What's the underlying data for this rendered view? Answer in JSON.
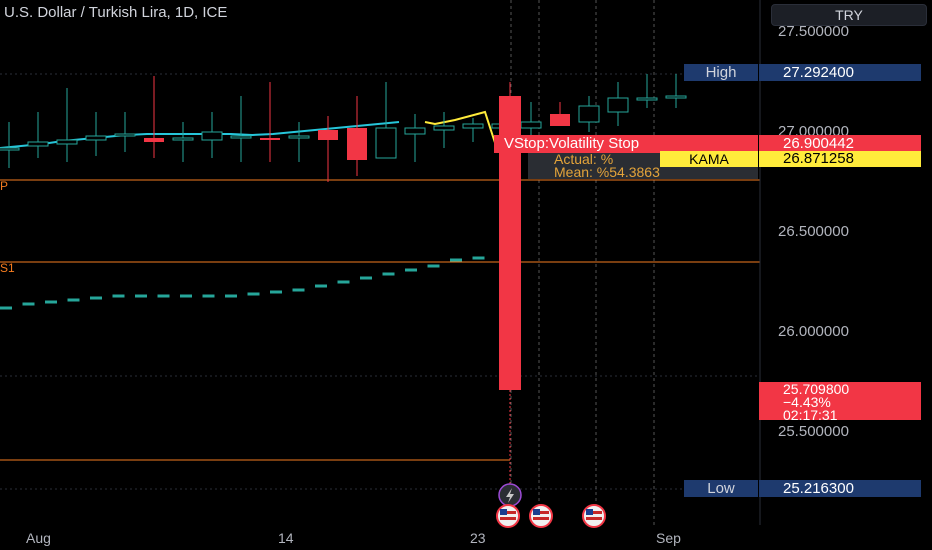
{
  "header": {
    "title": "U.S. Dollar / Turkish Lira, 1D, ICE",
    "currency_button": "TRY"
  },
  "y_axis": {
    "ticks": [
      "27.500000",
      "27.000000",
      "26.500000",
      "26.000000",
      "25.500000"
    ]
  },
  "x_axis": {
    "ticks": [
      "Aug",
      "14",
      "23",
      "Sep"
    ]
  },
  "tags": {
    "high_label": "High",
    "high_value": "27.292400",
    "stop_value": "26.900442",
    "kama_label": "KAMA",
    "kama_value": "26.871258",
    "price_value": "25.709800",
    "price_change": "−4.43%",
    "countdown": "02:17:31",
    "low_label": "Low",
    "low_value": "25.216300"
  },
  "indicator_labels": {
    "vstop": "VStop:Volatility Stop",
    "actual_line": "Actual: %",
    "mean_line": "Mean:   %54.3863",
    "pivot_p": "P",
    "pivot_s1": "S1"
  },
  "colors": {
    "up": "#26a69a",
    "down": "#f23645",
    "kama": "#ffeb3b",
    "pivot": "#f57c1f",
    "ma": "#2196f3"
  },
  "chart_data": {
    "type": "candlestick",
    "symbol": "USDTRY",
    "y_range": [
      25.03,
      27.54
    ],
    "x_labels": [
      "Aug",
      "14",
      "23",
      "Sep"
    ],
    "candles": [
      {
        "o": 26.92,
        "h": 27.05,
        "l": 26.82,
        "c": 26.92
      },
      {
        "o": 26.93,
        "h": 27.1,
        "l": 26.87,
        "c": 26.95
      },
      {
        "o": 26.94,
        "h": 27.22,
        "l": 26.85,
        "c": 26.96
      },
      {
        "o": 26.96,
        "h": 27.1,
        "l": 26.88,
        "c": 26.98
      },
      {
        "o": 26.98,
        "h": 27.1,
        "l": 26.9,
        "c": 26.99
      },
      {
        "o": 26.97,
        "h": 27.28,
        "l": 26.87,
        "c": 26.95
      },
      {
        "o": 26.97,
        "h": 27.05,
        "l": 26.85,
        "c": 26.97
      },
      {
        "o": 26.96,
        "h": 27.1,
        "l": 26.87,
        "c": 27.0
      },
      {
        "o": 26.98,
        "h": 27.18,
        "l": 26.85,
        "c": 26.98
      },
      {
        "o": 26.97,
        "h": 27.25,
        "l": 26.85,
        "c": 26.96
      },
      {
        "o": 26.98,
        "h": 27.05,
        "l": 26.85,
        "c": 26.98
      },
      {
        "o": 27.01,
        "h": 27.08,
        "l": 26.75,
        "c": 26.96
      },
      {
        "o": 27.02,
        "h": 27.18,
        "l": 26.78,
        "c": 26.86
      },
      {
        "o": 26.87,
        "h": 27.25,
        "l": 26.87,
        "c": 27.02
      },
      {
        "o": 26.99,
        "h": 27.09,
        "l": 26.85,
        "c": 27.02
      },
      {
        "o": 27.01,
        "h": 27.1,
        "l": 26.92,
        "c": 27.03
      },
      {
        "o": 27.02,
        "h": 27.07,
        "l": 26.95,
        "c": 27.04
      },
      {
        "o": 27.02,
        "h": 27.1,
        "l": 26.97,
        "c": 27.04
      },
      {
        "o": 27.02,
        "h": 27.15,
        "l": 26.98,
        "c": 27.05
      },
      {
        "o": 27.09,
        "h": 27.15,
        "l": 27.04,
        "c": 27.03
      },
      {
        "o": 27.05,
        "h": 27.18,
        "l": 27.0,
        "c": 27.13
      },
      {
        "o": 27.1,
        "h": 27.25,
        "l": 27.03,
        "c": 27.17
      },
      {
        "o": 27.17,
        "h": 27.29,
        "l": 27.12,
        "c": 27.17
      },
      {
        "o": 27.18,
        "h": 27.29,
        "l": 27.12,
        "c": 27.18
      },
      {
        "o": 27.18,
        "h": 27.25,
        "l": 25.71,
        "c": 25.71
      }
    ],
    "ma_line": [
      26.92,
      26.93,
      26.94,
      26.955,
      26.965,
      26.975,
      26.985,
      26.99,
      26.99,
      26.99,
      26.99,
      26.99,
      26.985,
      26.99,
      27.0,
      27.01,
      27.02,
      27.03,
      27.04,
      27.05
    ],
    "kama_line": [
      27.05,
      27.04,
      27.06,
      27.1,
      26.9
    ],
    "vstop_dots": [
      26.12,
      26.14,
      26.15,
      26.16,
      26.17,
      26.18,
      26.18,
      26.18,
      26.18,
      26.18,
      26.18,
      26.19,
      26.2,
      26.21,
      26.23,
      26.25,
      26.27,
      26.29,
      26.31,
      26.33,
      26.36,
      26.37
    ],
    "pivot_levels": {
      "P": 26.76,
      "S1": 26.35
    },
    "high": 27.2924,
    "low": 25.2163,
    "last_price": 25.7098,
    "change_pct": -4.43,
    "stop_value": 26.900442,
    "kama_value": 26.871258
  }
}
